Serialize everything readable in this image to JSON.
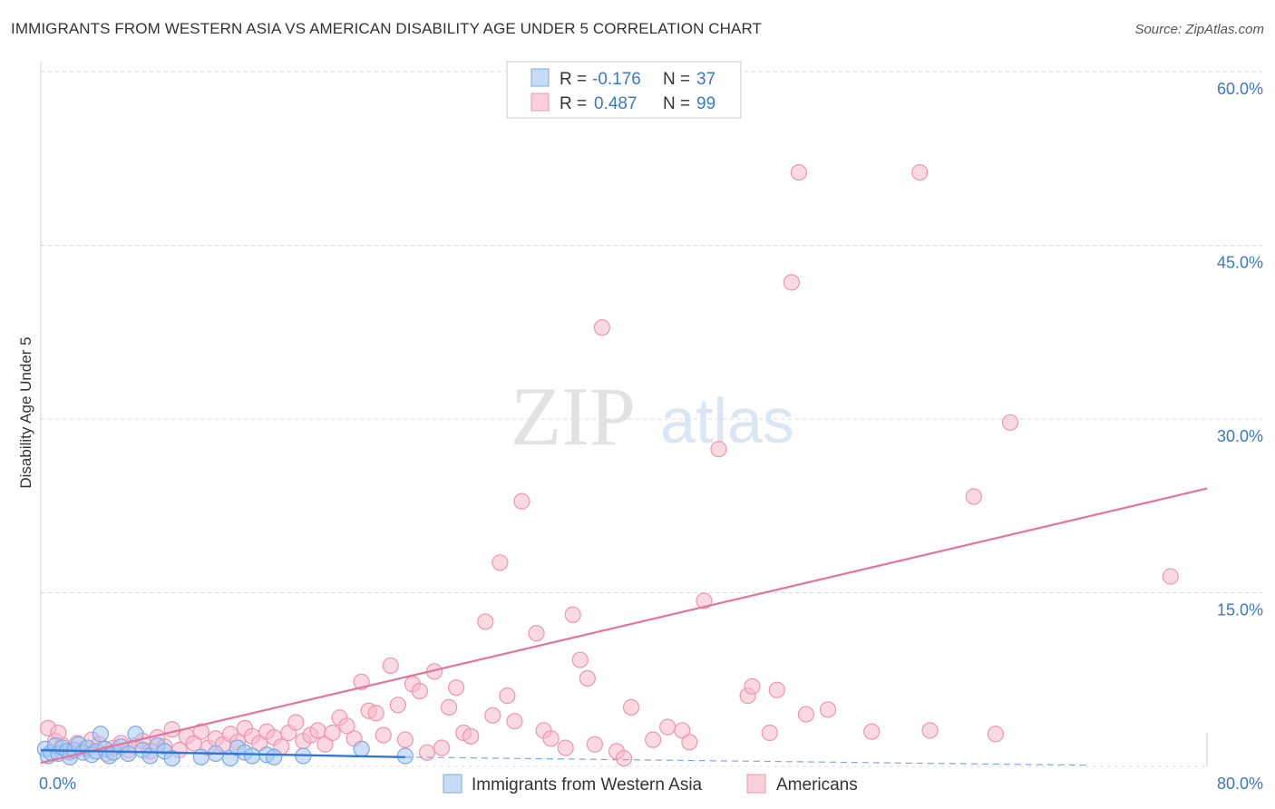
{
  "title": "IMMIGRANTS FROM WESTERN ASIA VS AMERICAN DISABILITY AGE UNDER 5 CORRELATION CHART",
  "source": "Source: ZipAtlas.com",
  "watermark": {
    "zip": "ZIP",
    "atlas": "atlas"
  },
  "colors": {
    "blue_fill": "#a9c8f0",
    "blue_stroke": "#7aaae6",
    "blue_line": "#2f78d6",
    "pink_fill": "#f7b9cc",
    "pink_stroke": "#ef95b2",
    "pink_line": "#e8739a",
    "axis_text": "#3a78c9",
    "grid": "#d8d8d8"
  },
  "legend": {
    "series1": {
      "r_label": "R =",
      "r_value": "-0.176",
      "n_label": "N =",
      "n_value": "37"
    },
    "series2": {
      "r_label": "R =",
      "r_value": "0.487",
      "n_label": "N =",
      "n_value": "99"
    }
  },
  "chart_data": {
    "type": "scatter",
    "ylabel": "Disability Age Under 5",
    "xlim": [
      0,
      80
    ],
    "ylim": [
      0,
      60
    ],
    "x_tick_labels": [
      {
        "value": 0,
        "label": "0.0%"
      },
      {
        "value": 80,
        "label": "80.0%"
      }
    ],
    "y_tick_labels": [
      {
        "value": 15,
        "label": "15.0%"
      },
      {
        "value": 30,
        "label": "30.0%"
      },
      {
        "value": 45,
        "label": "45.0%"
      },
      {
        "value": 60,
        "label": "60.0%"
      }
    ],
    "grid": true,
    "series": [
      {
        "name": "Immigrants from Western Asia",
        "trend": {
          "x": [
            0,
            25
          ],
          "y": [
            1.4,
            0.8
          ],
          "dashed_to": [
            72,
            0.1
          ]
        },
        "points": [
          [
            0.3,
            1.5
          ],
          [
            0.5,
            0.9
          ],
          [
            0.7,
            1.2
          ],
          [
            1.0,
            1.8
          ],
          [
            1.2,
            1.1
          ],
          [
            1.5,
            1.6
          ],
          [
            1.8,
            1.3
          ],
          [
            2.0,
            0.8
          ],
          [
            2.3,
            1.4
          ],
          [
            2.6,
            1.9
          ],
          [
            2.9,
            1.2
          ],
          [
            3.2,
            1.6
          ],
          [
            3.5,
            1.0
          ],
          [
            3.8,
            1.3
          ],
          [
            4.1,
            2.8
          ],
          [
            4.4,
            1.5
          ],
          [
            4.7,
            0.9
          ],
          [
            5.0,
            1.2
          ],
          [
            5.5,
            1.7
          ],
          [
            6.0,
            1.1
          ],
          [
            6.5,
            2.8
          ],
          [
            7.0,
            1.4
          ],
          [
            7.5,
            0.9
          ],
          [
            8.0,
            1.8
          ],
          [
            8.5,
            1.3
          ],
          [
            9.0,
            0.7
          ],
          [
            11.0,
            0.8
          ],
          [
            12.0,
            1.1
          ],
          [
            13.0,
            0.7
          ],
          [
            13.5,
            1.6
          ],
          [
            14.0,
            1.2
          ],
          [
            14.5,
            0.9
          ],
          [
            15.5,
            1.0
          ],
          [
            16.0,
            0.8
          ],
          [
            18.0,
            0.9
          ],
          [
            22.0,
            1.5
          ],
          [
            25.0,
            0.9
          ]
        ]
      },
      {
        "name": "Americans",
        "trend": {
          "x": [
            0,
            80
          ],
          "y": [
            0.3,
            24.0
          ]
        },
        "points": [
          [
            0.5,
            3.3
          ],
          [
            1.0,
            2.2
          ],
          [
            1.5,
            1.8
          ],
          [
            2.0,
            1.2
          ],
          [
            2.5,
            2.0
          ],
          [
            3.0,
            1.5
          ],
          [
            3.5,
            2.3
          ],
          [
            4.0,
            1.9
          ],
          [
            4.5,
            1.1
          ],
          [
            5.0,
            1.6
          ],
          [
            5.5,
            2.0
          ],
          [
            6.0,
            1.4
          ],
          [
            6.5,
            1.8
          ],
          [
            7.0,
            2.2
          ],
          [
            7.5,
            1.3
          ],
          [
            8.0,
            2.5
          ],
          [
            8.5,
            1.7
          ],
          [
            9.0,
            3.2
          ],
          [
            9.5,
            1.4
          ],
          [
            10.0,
            2.6
          ],
          [
            10.5,
            2.0
          ],
          [
            11.0,
            3.0
          ],
          [
            11.5,
            1.6
          ],
          [
            12.0,
            2.4
          ],
          [
            12.5,
            1.9
          ],
          [
            13.0,
            2.8
          ],
          [
            13.5,
            2.1
          ],
          [
            14.0,
            3.3
          ],
          [
            14.5,
            2.6
          ],
          [
            15.0,
            2.0
          ],
          [
            15.5,
            3.0
          ],
          [
            16.0,
            2.5
          ],
          [
            16.5,
            1.7
          ],
          [
            17.0,
            2.9
          ],
          [
            17.5,
            3.8
          ],
          [
            18.0,
            2.2
          ],
          [
            18.5,
            2.7
          ],
          [
            19.0,
            3.1
          ],
          [
            19.5,
            1.9
          ],
          [
            20.0,
            2.9
          ],
          [
            20.5,
            4.2
          ],
          [
            21.0,
            3.5
          ],
          [
            21.5,
            2.4
          ],
          [
            22.0,
            7.3
          ],
          [
            22.5,
            4.8
          ],
          [
            23.0,
            4.6
          ],
          [
            23.5,
            2.7
          ],
          [
            24.0,
            8.7
          ],
          [
            24.5,
            5.3
          ],
          [
            25.0,
            2.3
          ],
          [
            25.5,
            7.1
          ],
          [
            26.0,
            6.5
          ],
          [
            26.5,
            1.2
          ],
          [
            27.0,
            8.2
          ],
          [
            27.5,
            1.6
          ],
          [
            28.0,
            5.1
          ],
          [
            28.5,
            6.8
          ],
          [
            29.0,
            2.9
          ],
          [
            29.5,
            2.6
          ],
          [
            30.5,
            12.5
          ],
          [
            31.0,
            4.4
          ],
          [
            31.5,
            17.6
          ],
          [
            32.0,
            6.1
          ],
          [
            32.5,
            3.9
          ],
          [
            33.0,
            22.9
          ],
          [
            34.0,
            11.5
          ],
          [
            34.5,
            3.1
          ],
          [
            35.0,
            2.4
          ],
          [
            36.0,
            1.6
          ],
          [
            36.5,
            13.1
          ],
          [
            37.0,
            9.2
          ],
          [
            37.5,
            7.6
          ],
          [
            38.0,
            1.9
          ],
          [
            38.5,
            37.9
          ],
          [
            39.5,
            1.3
          ],
          [
            40.0,
            0.7
          ],
          [
            40.5,
            5.1
          ],
          [
            42.0,
            2.3
          ],
          [
            43.0,
            3.4
          ],
          [
            44.0,
            3.1
          ],
          [
            44.5,
            2.1
          ],
          [
            45.5,
            14.3
          ],
          [
            46.5,
            27.4
          ],
          [
            48.5,
            6.1
          ],
          [
            48.8,
            6.9
          ],
          [
            50.0,
            2.9
          ],
          [
            50.5,
            6.6
          ],
          [
            51.5,
            41.8
          ],
          [
            52.0,
            51.3
          ],
          [
            52.5,
            4.5
          ],
          [
            54.0,
            4.9
          ],
          [
            57.0,
            3.0
          ],
          [
            60.3,
            51.3
          ],
          [
            61.0,
            3.1
          ],
          [
            64.0,
            23.3
          ],
          [
            65.5,
            2.8
          ],
          [
            66.5,
            29.7
          ],
          [
            77.5,
            16.4
          ],
          [
            1.2,
            2.9
          ]
        ]
      }
    ]
  }
}
